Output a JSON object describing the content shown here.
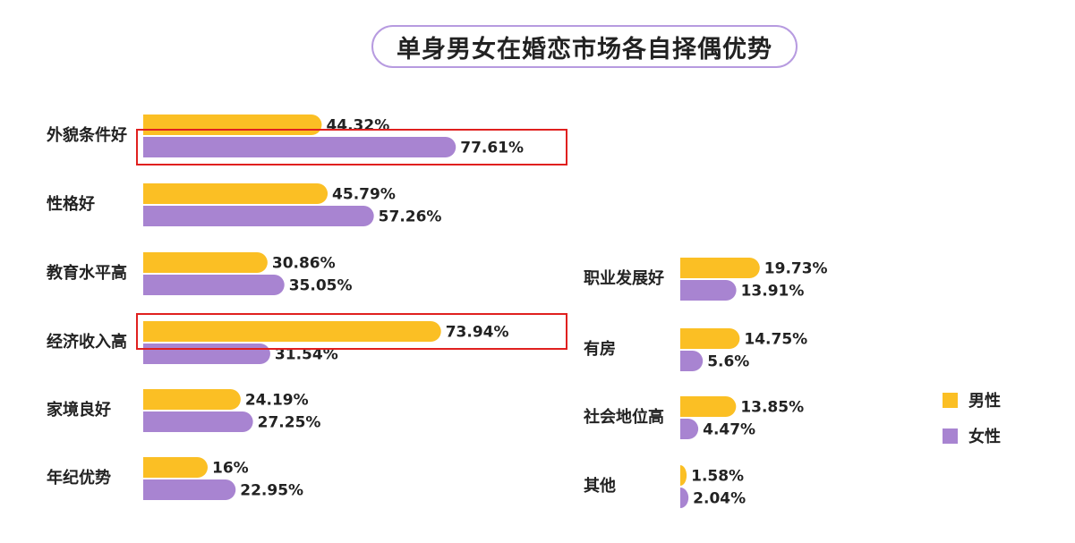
{
  "colors": {
    "male": "#FBBF24",
    "female": "#A884D1",
    "highlight": "#E0201F",
    "title_border": "#B79BE0"
  },
  "chart_data": {
    "type": "bar",
    "orientation": "horizontal",
    "title": "单身男女在婚恋市场各自择偶优势",
    "legend": [
      "男性",
      "女性"
    ],
    "legend_position": "right",
    "series": [
      {
        "name": "男性",
        "values": [
          44.32,
          45.79,
          30.86,
          73.94,
          24.19,
          16,
          19.73,
          14.75,
          13.85,
          1.58
        ]
      },
      {
        "name": "女性",
        "values": [
          77.61,
          57.26,
          35.05,
          31.54,
          27.25,
          22.95,
          13.91,
          5.6,
          4.47,
          2.04
        ]
      }
    ],
    "groups": [
      {
        "category": "外貌条件好",
        "male": 44.32,
        "female": 77.61,
        "male_label": "44.32%",
        "female_label": "77.61%",
        "highlight": "female"
      },
      {
        "category": "性格好",
        "male": 45.79,
        "female": 57.26,
        "male_label": "45.79%",
        "female_label": "57.26%"
      },
      {
        "category": "教育水平高",
        "male": 30.86,
        "female": 35.05,
        "male_label": "30.86%",
        "female_label": "35.05%"
      },
      {
        "category": "经济收入高",
        "male": 73.94,
        "female": 31.54,
        "male_label": "73.94%",
        "female_label": "31.54%",
        "highlight": "male"
      },
      {
        "category": "家境良好",
        "male": 24.19,
        "female": 27.25,
        "male_label": "24.19%",
        "female_label": "27.25%"
      },
      {
        "category": "年纪优势",
        "male": 16,
        "female": 22.95,
        "male_label": "16%",
        "female_label": "22.95%"
      },
      {
        "category": "职业发展好",
        "male": 19.73,
        "female": 13.91,
        "male_label": "19.73%",
        "female_label": "13.91%"
      },
      {
        "category": "有房",
        "male": 14.75,
        "female": 5.6,
        "male_label": "14.75%",
        "female_label": "5.6%"
      },
      {
        "category": "社会地位高",
        "male": 13.85,
        "female": 4.47,
        "male_label": "13.85%",
        "female_label": "4.47%"
      },
      {
        "category": "其他",
        "male": 1.58,
        "female": 2.04,
        "male_label": "1.58%",
        "female_label": "2.04%"
      }
    ],
    "unit": "%"
  }
}
